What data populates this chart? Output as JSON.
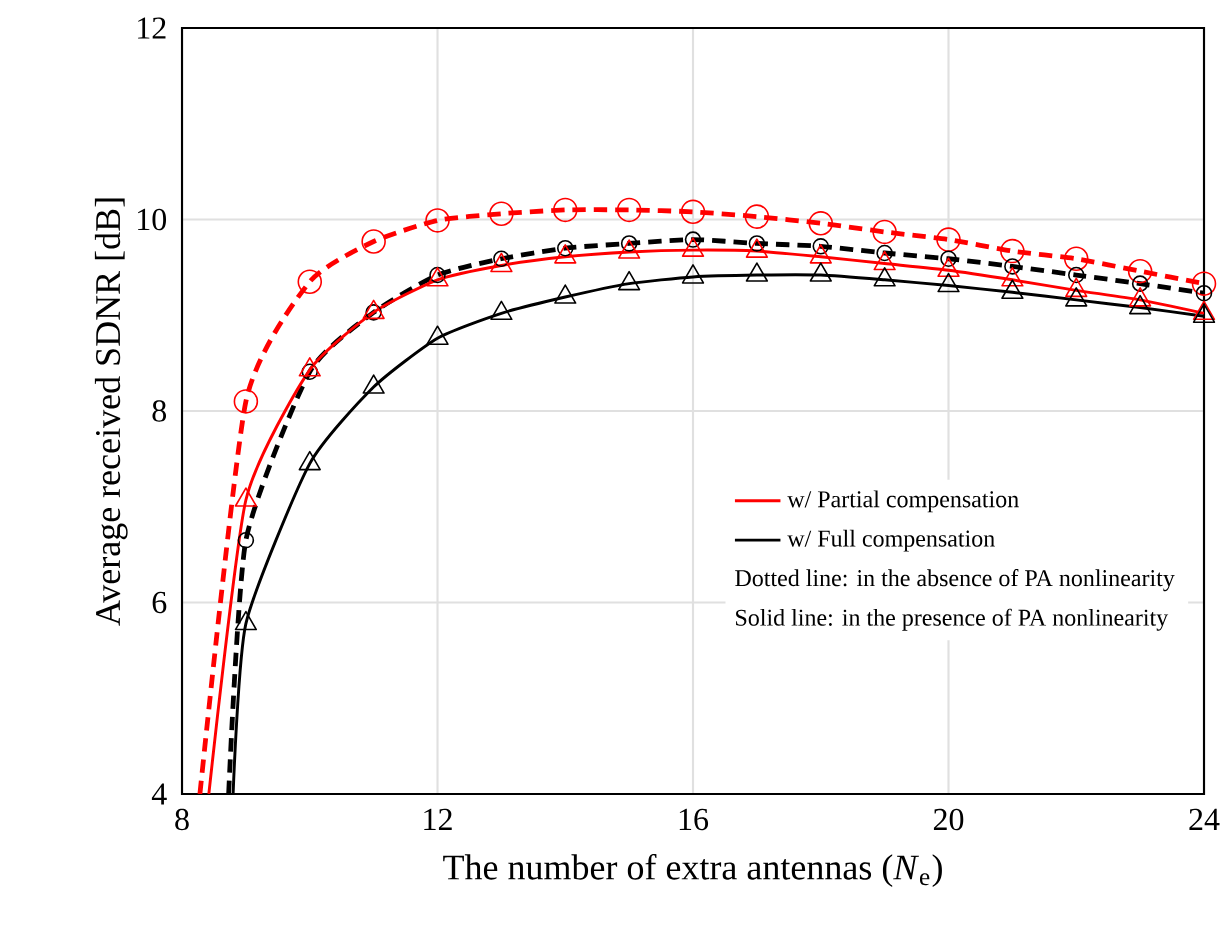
{
  "chart_data": {
    "type": "line",
    "xlabel": "The number of extra antennas (*N*$_{e}$)",
    "ylabel": "Average received SDNR [dB]",
    "xlim": [
      8,
      24
    ],
    "ylim": [
      4,
      12
    ],
    "xticks": [
      8,
      12,
      16,
      20,
      24
    ],
    "yticks": [
      4,
      6,
      8,
      10,
      12
    ],
    "grid": true,
    "legend": "bottom right",
    "annotations": [
      "Dotted line: in the absence of PA nonlinearity",
      "Solid line: in the presence of PA nonlinearity"
    ],
    "series": [
      {
        "color": "#ff0000",
        "line_style": "dashed",
        "marker": "circle",
        "x": [
          8.28,
          9,
          10,
          11,
          12,
          13,
          14,
          15,
          16,
          17,
          18,
          19,
          20,
          21,
          22,
          23,
          24
        ],
        "values": [
          4,
          8.1,
          9.35,
          9.77,
          9.99,
          10.06,
          10.1,
          10.1,
          10.08,
          10.03,
          9.96,
          9.87,
          9.79,
          9.67,
          9.59,
          9.46,
          9.33
        ]
      },
      {
        "color": "#000000",
        "line_style": "dashed",
        "marker": "circle",
        "x": [
          8.73,
          9,
          10,
          11,
          12,
          13,
          14,
          15,
          16,
          17,
          18,
          19,
          20,
          21,
          22,
          23,
          24
        ],
        "values": [
          4,
          6.65,
          8.41,
          9.03,
          9.42,
          9.59,
          9.7,
          9.75,
          9.79,
          9.75,
          9.72,
          9.65,
          9.59,
          9.51,
          9.42,
          9.33,
          9.23
        ]
      },
      {
        "name": "w/ Partial compensation",
        "color": "#ff0000",
        "line_style": "solid",
        "marker": "triangle",
        "x": [
          8.42,
          9,
          10,
          11,
          12,
          13,
          14,
          15,
          16,
          17,
          18,
          19,
          20,
          21,
          22,
          23,
          24
        ],
        "values": [
          4,
          7.07,
          8.43,
          9.03,
          9.37,
          9.52,
          9.61,
          9.66,
          9.68,
          9.67,
          9.61,
          9.54,
          9.47,
          9.37,
          9.26,
          9.16,
          9.02
        ]
      },
      {
        "name": "w/ Full compensation",
        "color": "#000000",
        "line_style": "solid",
        "marker": "triangle",
        "x": [
          8.8,
          9,
          10,
          11,
          12,
          13,
          14,
          15,
          16,
          17,
          18,
          19,
          20,
          21,
          22,
          23,
          24
        ],
        "values": [
          4,
          5.78,
          7.45,
          8.25,
          8.76,
          9.02,
          9.19,
          9.33,
          9.4,
          9.42,
          9.42,
          9.37,
          9.31,
          9.24,
          9.16,
          9.08,
          8.99
        ]
      }
    ]
  }
}
